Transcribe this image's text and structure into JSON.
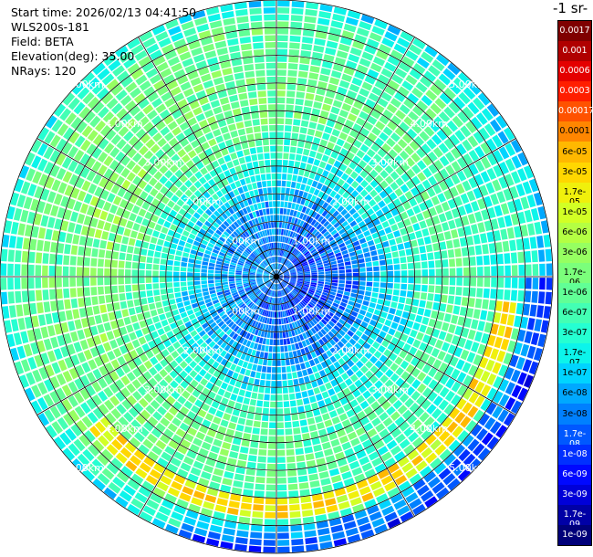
{
  "header": {
    "start_time": "Start time: 2026/02/13 04:41:50",
    "instrument": "WLS200s-181",
    "field": "Field: BETA",
    "elevation": "Elevation(deg): 35.00",
    "nrays": "NRays: 120"
  },
  "colorbar": {
    "unit_title": "-1 sr-",
    "labels": [
      "0.0017",
      "0.001",
      "0.0006",
      "0.0003",
      "0.00017",
      "0.0001",
      "6e-05",
      "3e-05",
      "1.7e-05",
      "1e-05",
      "6e-06",
      "3e-06",
      "1.7e-06",
      "1e-06",
      "6e-07",
      "3e-07",
      "1.7e-07",
      "1e-07",
      "6e-08",
      "3e-08",
      "1.7e-08",
      "1e-08",
      "6e-09",
      "3e-09",
      "1.7e-09",
      "1e-09"
    ],
    "colors": [
      "#7f0000",
      "#b00000",
      "#e40000",
      "#ff1e00",
      "#ff5200",
      "#ff8600",
      "#ffb800",
      "#ffd700",
      "#f0f00c",
      "#d2ff25",
      "#b4ff43",
      "#96ff61",
      "#7bff7b",
      "#61ff96",
      "#43ffb4",
      "#25ffd2",
      "#0cf4eb",
      "#00d4ff",
      "#00a8ff",
      "#0080ff",
      "#0058ff",
      "#0030ff",
      "#0008ff",
      "#0000d8",
      "#0000a6",
      "#00007a"
    ]
  },
  "chart_data": {
    "type": "heatmap",
    "subtype": "polar PPI scan",
    "field": "BETA",
    "elevation_deg": 35.0,
    "n_rays": 120,
    "range_rings_km": [
      1.0,
      2.0,
      3.0,
      4.0,
      5.0
    ],
    "ring_labels": [
      "1.00km",
      "2.00km",
      "3.00km",
      "4.00km",
      "5.00km"
    ],
    "radial_lines_deg": [
      0,
      30,
      60,
      90,
      120,
      150,
      180,
      210,
      240,
      270,
      300,
      330
    ],
    "max_range_km": 5.0,
    "color_scale": "log",
    "value_range": [
      1e-09,
      0.0017
    ],
    "radial_profile": [
      {
        "range_km": 0.2,
        "value": 3e-08
      },
      {
        "range_km": 0.6,
        "value": 2e-08
      },
      {
        "range_km": 1.0,
        "value": 3e-08
      },
      {
        "range_km": 1.5,
        "value": 6e-08
      },
      {
        "range_km": 2.0,
        "value": 2e-07
      },
      {
        "range_km": 2.5,
        "value": 5e-07
      },
      {
        "range_km": 3.0,
        "value": 1e-06
      },
      {
        "range_km": 3.5,
        "value": 1e-06
      },
      {
        "range_km": 4.0,
        "value": 6e-07
      },
      {
        "range_km": 4.5,
        "value": 8e-07
      },
      {
        "range_km": 5.0,
        "value": 1e-07
      }
    ],
    "features": [
      "high-backscatter arc (~3e-05) near 4.2 km range, south-east sector"
    ]
  }
}
